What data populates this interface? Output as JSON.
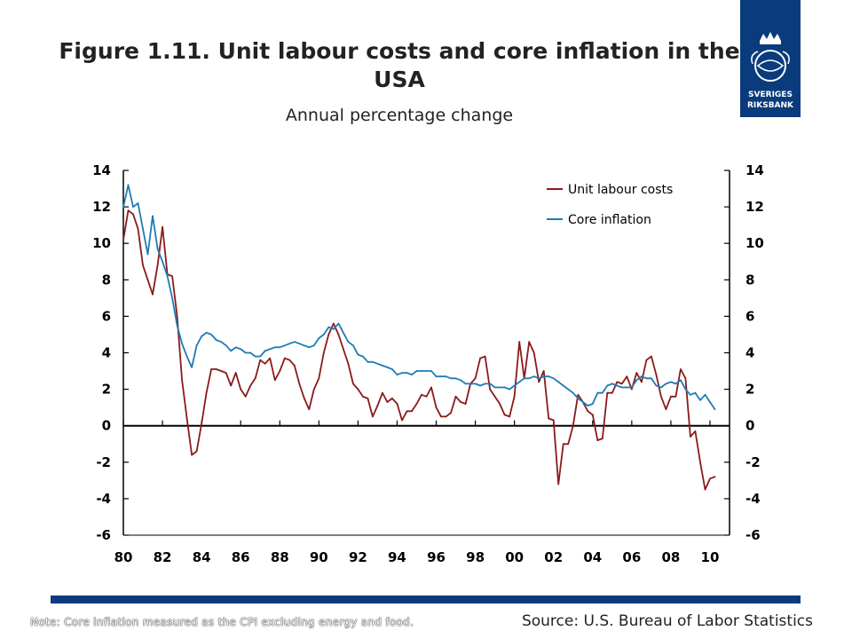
{
  "header": {
    "title": "Figure 1.11. Unit labour costs and core inflation in the USA",
    "subtitle": "Annual percentage change"
  },
  "logo": {
    "name": "Sveriges Riksbank",
    "line1": "SVERIGES",
    "line2": "RIKSBANK",
    "color": "#0a3c7d"
  },
  "footer": {
    "note": "Note: Core inflation measured as the CPI excluding energy and food.",
    "source": "Source: U.S. Bureau of Labor Statistics"
  },
  "chart_data": {
    "type": "line",
    "title": "Figure 1.11. Unit labour costs and core inflation in the USA",
    "subtitle": "Annual percentage change",
    "ylim": [
      -6,
      14
    ],
    "yticks": [
      14,
      12,
      10,
      8,
      6,
      4,
      2,
      0,
      -2,
      -4,
      -6
    ],
    "ytick_labels": [
      "14",
      "12",
      "10",
      "8",
      "6",
      "4",
      "2",
      "0",
      "-2",
      "-4",
      "-6"
    ],
    "xlim": [
      1980,
      2011
    ],
    "xticks": [
      1980,
      1982,
      1984,
      1986,
      1988,
      1990,
      1992,
      1994,
      1996,
      1998,
      2000,
      2002,
      2004,
      2006,
      2008,
      2010
    ],
    "xtick_labels": [
      "80",
      "82",
      "84",
      "86",
      "88",
      "90",
      "92",
      "94",
      "96",
      "98",
      "00",
      "02",
      "04",
      "06",
      "08",
      "10"
    ],
    "grid": false,
    "dual_axis": true,
    "legend_position": "top-right",
    "series": [
      {
        "name": "Unit labour costs",
        "color": "#8b1a1a",
        "points": [
          [
            1980.0,
            10.2
          ],
          [
            1980.25,
            11.8
          ],
          [
            1980.5,
            11.6
          ],
          [
            1980.75,
            10.8
          ],
          [
            1981.0,
            8.8
          ],
          [
            1981.25,
            8.0
          ],
          [
            1981.5,
            7.2
          ],
          [
            1981.75,
            8.8
          ],
          [
            1982.0,
            10.9
          ],
          [
            1982.25,
            8.3
          ],
          [
            1982.5,
            8.2
          ],
          [
            1982.75,
            6.0
          ],
          [
            1983.0,
            2.5
          ],
          [
            1983.25,
            0.4
          ],
          [
            1983.5,
            -1.6
          ],
          [
            1983.75,
            -1.4
          ],
          [
            1984.0,
            0.1
          ],
          [
            1984.25,
            1.8
          ],
          [
            1984.5,
            3.1
          ],
          [
            1984.75,
            3.1
          ],
          [
            1985.0,
            3.0
          ],
          [
            1985.25,
            2.9
          ],
          [
            1985.5,
            2.2
          ],
          [
            1985.75,
            2.9
          ],
          [
            1986.0,
            2.0
          ],
          [
            1986.25,
            1.6
          ],
          [
            1986.5,
            2.2
          ],
          [
            1986.75,
            2.6
          ],
          [
            1987.0,
            3.6
          ],
          [
            1987.25,
            3.4
          ],
          [
            1987.5,
            3.7
          ],
          [
            1987.75,
            2.5
          ],
          [
            1988.0,
            3.0
          ],
          [
            1988.25,
            3.7
          ],
          [
            1988.5,
            3.6
          ],
          [
            1988.75,
            3.3
          ],
          [
            1989.0,
            2.3
          ],
          [
            1989.25,
            1.5
          ],
          [
            1989.5,
            0.9
          ],
          [
            1989.75,
            2.0
          ],
          [
            1990.0,
            2.6
          ],
          [
            1990.25,
            4.0
          ],
          [
            1990.5,
            5.0
          ],
          [
            1990.75,
            5.6
          ],
          [
            1991.0,
            5.0
          ],
          [
            1991.25,
            4.2
          ],
          [
            1991.5,
            3.4
          ],
          [
            1991.75,
            2.3
          ],
          [
            1992.0,
            2.0
          ],
          [
            1992.25,
            1.6
          ],
          [
            1992.5,
            1.5
          ],
          [
            1992.75,
            0.5
          ],
          [
            1993.0,
            1.1
          ],
          [
            1993.25,
            1.8
          ],
          [
            1993.5,
            1.3
          ],
          [
            1993.75,
            1.5
          ],
          [
            1994.0,
            1.2
          ],
          [
            1994.25,
            0.3
          ],
          [
            1994.5,
            0.8
          ],
          [
            1994.75,
            0.8
          ],
          [
            1995.0,
            1.2
          ],
          [
            1995.25,
            1.7
          ],
          [
            1995.5,
            1.6
          ],
          [
            1995.75,
            2.1
          ],
          [
            1996.0,
            1.0
          ],
          [
            1996.25,
            0.5
          ],
          [
            1996.5,
            0.5
          ],
          [
            1996.75,
            0.7
          ],
          [
            1997.0,
            1.6
          ],
          [
            1997.25,
            1.3
          ],
          [
            1997.5,
            1.2
          ],
          [
            1997.75,
            2.3
          ],
          [
            1998.0,
            2.6
          ],
          [
            1998.25,
            3.7
          ],
          [
            1998.5,
            3.8
          ],
          [
            1998.75,
            2.0
          ],
          [
            1999.0,
            1.6
          ],
          [
            1999.25,
            1.2
          ],
          [
            1999.5,
            0.6
          ],
          [
            1999.75,
            0.5
          ],
          [
            2000.0,
            1.6
          ],
          [
            2000.25,
            4.6
          ],
          [
            2000.5,
            2.6
          ],
          [
            2000.75,
            4.6
          ],
          [
            2001.0,
            4.0
          ],
          [
            2001.25,
            2.4
          ],
          [
            2001.5,
            3.0
          ],
          [
            2001.75,
            0.4
          ],
          [
            2002.0,
            0.3
          ],
          [
            2002.25,
            -3.2
          ],
          [
            2002.5,
            -1.0
          ],
          [
            2002.75,
            -1.0
          ],
          [
            2003.0,
            0.0
          ],
          [
            2003.25,
            1.7
          ],
          [
            2003.5,
            1.3
          ],
          [
            2003.75,
            0.8
          ],
          [
            2004.0,
            0.6
          ],
          [
            2004.25,
            -0.8
          ],
          [
            2004.5,
            -0.7
          ],
          [
            2004.75,
            1.8
          ],
          [
            2005.0,
            1.8
          ],
          [
            2005.25,
            2.4
          ],
          [
            2005.5,
            2.3
          ],
          [
            2005.75,
            2.7
          ],
          [
            2006.0,
            2.0
          ],
          [
            2006.25,
            2.9
          ],
          [
            2006.5,
            2.4
          ],
          [
            2006.75,
            3.6
          ],
          [
            2007.0,
            3.8
          ],
          [
            2007.25,
            2.8
          ],
          [
            2007.5,
            1.6
          ],
          [
            2007.75,
            0.9
          ],
          [
            2008.0,
            1.6
          ],
          [
            2008.25,
            1.6
          ],
          [
            2008.5,
            3.1
          ],
          [
            2008.75,
            2.6
          ],
          [
            2009.0,
            -0.6
          ],
          [
            2009.25,
            -0.3
          ],
          [
            2009.5,
            -2.0
          ],
          [
            2009.75,
            -3.5
          ],
          [
            2010.0,
            -2.9
          ],
          [
            2010.25,
            -2.8
          ]
        ]
      },
      {
        "name": "Core inflation",
        "color": "#1f7bb3",
        "points": [
          [
            1980.0,
            12.0
          ],
          [
            1980.25,
            13.2
          ],
          [
            1980.5,
            12.0
          ],
          [
            1980.75,
            12.2
          ],
          [
            1981.0,
            10.8
          ],
          [
            1981.25,
            9.4
          ],
          [
            1981.5,
            11.5
          ],
          [
            1981.75,
            9.7
          ],
          [
            1982.0,
            9.0
          ],
          [
            1982.25,
            8.2
          ],
          [
            1982.5,
            7.0
          ],
          [
            1982.75,
            5.5
          ],
          [
            1983.0,
            4.5
          ],
          [
            1983.25,
            3.8
          ],
          [
            1983.5,
            3.2
          ],
          [
            1983.75,
            4.4
          ],
          [
            1984.0,
            4.9
          ],
          [
            1984.25,
            5.1
          ],
          [
            1984.5,
            5.0
          ],
          [
            1984.75,
            4.7
          ],
          [
            1985.0,
            4.6
          ],
          [
            1985.25,
            4.4
          ],
          [
            1985.5,
            4.1
          ],
          [
            1985.75,
            4.3
          ],
          [
            1986.0,
            4.2
          ],
          [
            1986.25,
            4.0
          ],
          [
            1986.5,
            4.0
          ],
          [
            1986.75,
            3.8
          ],
          [
            1987.0,
            3.8
          ],
          [
            1987.25,
            4.1
          ],
          [
            1987.5,
            4.2
          ],
          [
            1987.75,
            4.3
          ],
          [
            1988.0,
            4.3
          ],
          [
            1988.25,
            4.4
          ],
          [
            1988.5,
            4.5
          ],
          [
            1988.75,
            4.6
          ],
          [
            1989.0,
            4.5
          ],
          [
            1989.25,
            4.4
          ],
          [
            1989.5,
            4.3
          ],
          [
            1989.75,
            4.4
          ],
          [
            1990.0,
            4.8
          ],
          [
            1990.25,
            5.0
          ],
          [
            1990.5,
            5.4
          ],
          [
            1990.75,
            5.3
          ],
          [
            1991.0,
            5.6
          ],
          [
            1991.25,
            5.1
          ],
          [
            1991.5,
            4.6
          ],
          [
            1991.75,
            4.4
          ],
          [
            1992.0,
            3.9
          ],
          [
            1992.25,
            3.8
          ],
          [
            1992.5,
            3.5
          ],
          [
            1992.75,
            3.5
          ],
          [
            1993.0,
            3.4
          ],
          [
            1993.25,
            3.3
          ],
          [
            1993.5,
            3.2
          ],
          [
            1993.75,
            3.1
          ],
          [
            1994.0,
            2.8
          ],
          [
            1994.25,
            2.9
          ],
          [
            1994.5,
            2.9
          ],
          [
            1994.75,
            2.8
          ],
          [
            1995.0,
            3.0
          ],
          [
            1995.25,
            3.0
          ],
          [
            1995.5,
            3.0
          ],
          [
            1995.75,
            3.0
          ],
          [
            1996.0,
            2.7
          ],
          [
            1996.25,
            2.7
          ],
          [
            1996.5,
            2.7
          ],
          [
            1996.75,
            2.6
          ],
          [
            1997.0,
            2.6
          ],
          [
            1997.25,
            2.5
          ],
          [
            1997.5,
            2.3
          ],
          [
            1997.75,
            2.3
          ],
          [
            1998.0,
            2.3
          ],
          [
            1998.25,
            2.2
          ],
          [
            1998.5,
            2.3
          ],
          [
            1998.75,
            2.3
          ],
          [
            1999.0,
            2.1
          ],
          [
            1999.25,
            2.1
          ],
          [
            1999.5,
            2.1
          ],
          [
            1999.75,
            2.0
          ],
          [
            2000.0,
            2.2
          ],
          [
            2000.25,
            2.4
          ],
          [
            2000.5,
            2.6
          ],
          [
            2000.75,
            2.6
          ],
          [
            2001.0,
            2.7
          ],
          [
            2001.25,
            2.6
          ],
          [
            2001.5,
            2.7
          ],
          [
            2001.75,
            2.7
          ],
          [
            2002.0,
            2.6
          ],
          [
            2002.25,
            2.4
          ],
          [
            2002.5,
            2.2
          ],
          [
            2002.75,
            2.0
          ],
          [
            2003.0,
            1.8
          ],
          [
            2003.25,
            1.5
          ],
          [
            2003.5,
            1.3
          ],
          [
            2003.75,
            1.1
          ],
          [
            2004.0,
            1.2
          ],
          [
            2004.25,
            1.8
          ],
          [
            2004.5,
            1.8
          ],
          [
            2004.75,
            2.2
          ],
          [
            2005.0,
            2.3
          ],
          [
            2005.25,
            2.2
          ],
          [
            2005.5,
            2.1
          ],
          [
            2005.75,
            2.1
          ],
          [
            2006.0,
            2.1
          ],
          [
            2006.25,
            2.5
          ],
          [
            2006.5,
            2.7
          ],
          [
            2006.75,
            2.6
          ],
          [
            2007.0,
            2.6
          ],
          [
            2007.25,
            2.2
          ],
          [
            2007.5,
            2.1
          ],
          [
            2007.75,
            2.3
          ],
          [
            2008.0,
            2.4
          ],
          [
            2008.25,
            2.3
          ],
          [
            2008.5,
            2.5
          ],
          [
            2008.75,
            2.0
          ],
          [
            2009.0,
            1.7
          ],
          [
            2009.25,
            1.8
          ],
          [
            2009.5,
            1.4
          ],
          [
            2009.75,
            1.7
          ],
          [
            2010.0,
            1.3
          ],
          [
            2010.25,
            0.9
          ]
        ]
      }
    ]
  }
}
